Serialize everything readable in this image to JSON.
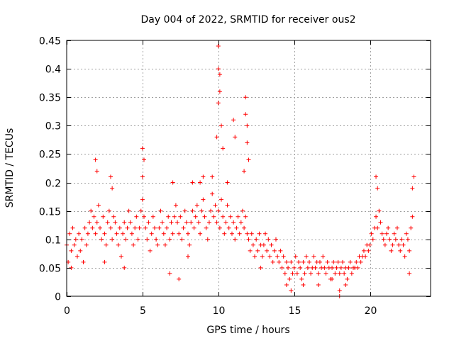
{
  "chart_data": {
    "type": "scatter",
    "title": "Day 004 of 2022, SRMTID for receiver ous2",
    "xlabel": "GPS time / hours",
    "ylabel": "SRMTID / TECUs",
    "xlim": [
      0,
      24
    ],
    "ylim": [
      0,
      0.45
    ],
    "xticks": [
      0,
      5,
      10,
      15,
      20
    ],
    "xtick_labels": [
      "0",
      "5",
      "10",
      "15",
      "20"
    ],
    "yticks": [
      0,
      0.05,
      0.1,
      0.15,
      0.2,
      0.25,
      0.3,
      0.35,
      0.4,
      0.45
    ],
    "ytick_labels": [
      "0",
      "0.05",
      "0.1",
      "0.15",
      "0.2",
      "0.25",
      "0.3",
      "0.35",
      "0.4",
      "0.45"
    ],
    "grid": true,
    "marker": "plus",
    "series": [
      {
        "name": "SRMTID",
        "color": "#ff0000",
        "points": [
          [
            0.0,
            0.09
          ],
          [
            0.1,
            0.06
          ],
          [
            0.2,
            0.11
          ],
          [
            0.3,
            0.08
          ],
          [
            0.4,
            0.12
          ],
          [
            0.5,
            0.09
          ],
          [
            0.6,
            0.1
          ],
          [
            0.7,
            0.07
          ],
          [
            0.8,
            0.11
          ],
          [
            0.9,
            0.08
          ],
          [
            1.0,
            0.1
          ],
          [
            1.1,
            0.06
          ],
          [
            1.2,
            0.12
          ],
          [
            1.3,
            0.09
          ],
          [
            1.4,
            0.11
          ],
          [
            1.5,
            0.13
          ],
          [
            1.6,
            0.15
          ],
          [
            1.7,
            0.12
          ],
          [
            1.8,
            0.14
          ],
          [
            1.9,
            0.11
          ],
          [
            2.0,
            0.13
          ],
          [
            2.1,
            0.16
          ],
          [
            2.2,
            0.12
          ],
          [
            2.3,
            0.1
          ],
          [
            2.4,
            0.14
          ],
          [
            2.5,
            0.11
          ],
          [
            2.6,
            0.09
          ],
          [
            2.7,
            0.13
          ],
          [
            2.8,
            0.15
          ],
          [
            2.9,
            0.12
          ],
          [
            3.0,
            0.1
          ],
          [
            3.1,
            0.14
          ],
          [
            3.2,
            0.13
          ],
          [
            3.3,
            0.11
          ],
          [
            3.4,
            0.09
          ],
          [
            3.5,
            0.12
          ],
          [
            3.6,
            0.07
          ],
          [
            3.7,
            0.11
          ],
          [
            3.8,
            0.13
          ],
          [
            3.9,
            0.1
          ],
          [
            4.0,
            0.12
          ],
          [
            4.1,
            0.15
          ],
          [
            4.2,
            0.13
          ],
          [
            4.3,
            0.11
          ],
          [
            4.4,
            0.09
          ],
          [
            4.5,
            0.12
          ],
          [
            4.6,
            0.14
          ],
          [
            4.7,
            0.1
          ],
          [
            4.8,
            0.12
          ],
          [
            4.9,
            0.15
          ],
          [
            5.0,
            0.17
          ],
          [
            5.1,
            0.14
          ],
          [
            5.2,
            0.12
          ],
          [
            5.3,
            0.1
          ],
          [
            5.4,
            0.13
          ],
          [
            5.5,
            0.08
          ],
          [
            5.6,
            0.11
          ],
          [
            5.7,
            0.14
          ],
          [
            5.8,
            0.12
          ],
          [
            5.9,
            0.1
          ],
          [
            6.0,
            0.09
          ],
          [
            6.1,
            0.12
          ],
          [
            6.2,
            0.15
          ],
          [
            6.3,
            0.13
          ],
          [
            6.4,
            0.11
          ],
          [
            6.5,
            0.09
          ],
          [
            6.6,
            0.12
          ],
          [
            6.7,
            0.14
          ],
          [
            6.8,
            0.1
          ],
          [
            6.9,
            0.13
          ],
          [
            7.0,
            0.11
          ],
          [
            7.1,
            0.14
          ],
          [
            7.2,
            0.16
          ],
          [
            7.3,
            0.13
          ],
          [
            7.4,
            0.11
          ],
          [
            7.5,
            0.14
          ],
          [
            7.6,
            0.1
          ],
          [
            7.7,
            0.12
          ],
          [
            7.8,
            0.15
          ],
          [
            7.9,
            0.13
          ],
          [
            8.0,
            0.11
          ],
          [
            8.1,
            0.09
          ],
          [
            8.2,
            0.13
          ],
          [
            8.3,
            0.15
          ],
          [
            8.4,
            0.12
          ],
          [
            8.5,
            0.14
          ],
          [
            8.6,
            0.16
          ],
          [
            8.7,
            0.13
          ],
          [
            8.8,
            0.11
          ],
          [
            8.9,
            0.15
          ],
          [
            9.0,
            0.17
          ],
          [
            9.1,
            0.14
          ],
          [
            9.2,
            0.12
          ],
          [
            9.3,
            0.1
          ],
          [
            9.4,
            0.13
          ],
          [
            9.5,
            0.15
          ],
          [
            9.6,
            0.18
          ],
          [
            9.7,
            0.14
          ],
          [
            9.8,
            0.16
          ],
          [
            9.9,
            0.13
          ],
          [
            10.0,
            0.15
          ],
          [
            10.1,
            0.12
          ],
          [
            10.2,
            0.17
          ],
          [
            10.3,
            0.14
          ],
          [
            10.4,
            0.11
          ],
          [
            10.5,
            0.13
          ],
          [
            10.6,
            0.16
          ],
          [
            10.7,
            0.12
          ],
          [
            10.8,
            0.14
          ],
          [
            10.9,
            0.11
          ],
          [
            11.0,
            0.13
          ],
          [
            11.1,
            0.1
          ],
          [
            11.2,
            0.12
          ],
          [
            11.3,
            0.14
          ],
          [
            11.4,
            0.11
          ],
          [
            11.5,
            0.13
          ],
          [
            11.6,
            0.15
          ],
          [
            11.7,
            0.12
          ],
          [
            11.8,
            0.14
          ],
          [
            11.9,
            0.11
          ],
          [
            12.0,
            0.1
          ],
          [
            12.1,
            0.08
          ],
          [
            12.2,
            0.11
          ],
          [
            12.3,
            0.09
          ],
          [
            12.4,
            0.07
          ],
          [
            12.5,
            0.1
          ],
          [
            12.6,
            0.08
          ],
          [
            12.7,
            0.11
          ],
          [
            12.8,
            0.09
          ],
          [
            12.9,
            0.07
          ],
          [
            13.0,
            0.09
          ],
          [
            13.1,
            0.11
          ],
          [
            13.2,
            0.08
          ],
          [
            13.3,
            0.1
          ],
          [
            13.4,
            0.07
          ],
          [
            13.5,
            0.09
          ],
          [
            13.6,
            0.06
          ],
          [
            13.7,
            0.08
          ],
          [
            13.8,
            0.1
          ],
          [
            13.9,
            0.07
          ],
          [
            14.0,
            0.06
          ],
          [
            14.1,
            0.08
          ],
          [
            14.2,
            0.05
          ],
          [
            14.3,
            0.07
          ],
          [
            14.4,
            0.04
          ],
          [
            14.5,
            0.06
          ],
          [
            14.6,
            0.05
          ],
          [
            14.7,
            0.03
          ],
          [
            14.8,
            0.06
          ],
          [
            14.9,
            0.04
          ],
          [
            15.0,
            0.05
          ],
          [
            15.1,
            0.07
          ],
          [
            15.2,
            0.04
          ],
          [
            15.3,
            0.06
          ],
          [
            15.4,
            0.05
          ],
          [
            15.5,
            0.03
          ],
          [
            15.6,
            0.06
          ],
          [
            15.7,
            0.04
          ],
          [
            15.8,
            0.07
          ],
          [
            15.9,
            0.05
          ],
          [
            16.0,
            0.06
          ],
          [
            16.1,
            0.04
          ],
          [
            16.2,
            0.05
          ],
          [
            16.3,
            0.07
          ],
          [
            16.4,
            0.05
          ],
          [
            16.5,
            0.06
          ],
          [
            16.6,
            0.04
          ],
          [
            16.7,
            0.06
          ],
          [
            16.8,
            0.05
          ],
          [
            16.9,
            0.07
          ],
          [
            17.0,
            0.05
          ],
          [
            17.1,
            0.04
          ],
          [
            17.2,
            0.06
          ],
          [
            17.3,
            0.05
          ],
          [
            17.4,
            0.03
          ],
          [
            17.5,
            0.05
          ],
          [
            17.6,
            0.06
          ],
          [
            17.7,
            0.04
          ],
          [
            17.8,
            0.05
          ],
          [
            17.9,
            0.06
          ],
          [
            18.0,
            0.04
          ],
          [
            18.1,
            0.05
          ],
          [
            18.2,
            0.06
          ],
          [
            18.3,
            0.04
          ],
          [
            18.4,
            0.05
          ],
          [
            18.5,
            0.03
          ],
          [
            18.6,
            0.05
          ],
          [
            18.7,
            0.06
          ],
          [
            18.8,
            0.04
          ],
          [
            18.9,
            0.05
          ],
          [
            19.0,
            0.05
          ],
          [
            19.1,
            0.06
          ],
          [
            19.2,
            0.05
          ],
          [
            19.3,
            0.07
          ],
          [
            19.4,
            0.06
          ],
          [
            19.5,
            0.07
          ],
          [
            19.6,
            0.08
          ],
          [
            19.7,
            0.07
          ],
          [
            19.8,
            0.09
          ],
          [
            19.9,
            0.08
          ],
          [
            20.0,
            0.09
          ],
          [
            20.1,
            0.11
          ],
          [
            20.2,
            0.1
          ],
          [
            20.3,
            0.12
          ],
          [
            20.4,
            0.14
          ],
          [
            20.5,
            0.12
          ],
          [
            20.6,
            0.15
          ],
          [
            20.7,
            0.13
          ],
          [
            20.8,
            0.11
          ],
          [
            20.9,
            0.1
          ],
          [
            21.0,
            0.09
          ],
          [
            21.1,
            0.11
          ],
          [
            21.2,
            0.12
          ],
          [
            21.3,
            0.1
          ],
          [
            21.4,
            0.08
          ],
          [
            21.5,
            0.09
          ],
          [
            21.6,
            0.11
          ],
          [
            21.7,
            0.1
          ],
          [
            21.8,
            0.12
          ],
          [
            21.9,
            0.09
          ],
          [
            22.0,
            0.08
          ],
          [
            22.1,
            0.1
          ],
          [
            22.2,
            0.09
          ],
          [
            22.3,
            0.07
          ],
          [
            22.4,
            0.11
          ],
          [
            22.5,
            0.1
          ],
          [
            22.6,
            0.08
          ],
          [
            22.7,
            0.12
          ],
          [
            22.8,
            0.14
          ],
          [
            1.9,
            0.24
          ],
          [
            2.0,
            0.22
          ],
          [
            2.9,
            0.21
          ],
          [
            3.0,
            0.19
          ],
          [
            5.0,
            0.26
          ],
          [
            5.1,
            0.24
          ],
          [
            5.0,
            0.21
          ],
          [
            7.0,
            0.2
          ],
          [
            8.3,
            0.2
          ],
          [
            8.8,
            0.2
          ],
          [
            9.0,
            0.21
          ],
          [
            9.6,
            0.21
          ],
          [
            9.9,
            0.28
          ],
          [
            10.0,
            0.44
          ],
          [
            10.0,
            0.4
          ],
          [
            10.1,
            0.39
          ],
          [
            10.1,
            0.36
          ],
          [
            10.0,
            0.34
          ],
          [
            10.2,
            0.3
          ],
          [
            10.3,
            0.26
          ],
          [
            10.6,
            0.2
          ],
          [
            11.0,
            0.31
          ],
          [
            11.1,
            0.28
          ],
          [
            11.8,
            0.35
          ],
          [
            11.8,
            0.32
          ],
          [
            11.9,
            0.3
          ],
          [
            11.9,
            0.27
          ],
          [
            12.0,
            0.24
          ],
          [
            11.7,
            0.22
          ],
          [
            20.4,
            0.21
          ],
          [
            20.5,
            0.19
          ],
          [
            22.9,
            0.21
          ],
          [
            22.8,
            0.19
          ],
          [
            0.3,
            0.05
          ],
          [
            2.5,
            0.06
          ],
          [
            3.8,
            0.05
          ],
          [
            6.8,
            0.04
          ],
          [
            7.4,
            0.03
          ],
          [
            8.0,
            0.07
          ],
          [
            12.8,
            0.05
          ],
          [
            14.5,
            0.02
          ],
          [
            14.8,
            0.01
          ],
          [
            15.6,
            0.02
          ],
          [
            16.6,
            0.02
          ],
          [
            17.5,
            0.03
          ],
          [
            18.0,
            0.01
          ],
          [
            18.0,
            0.0
          ],
          [
            18.4,
            0.02
          ],
          [
            22.6,
            0.04
          ]
        ]
      }
    ]
  }
}
